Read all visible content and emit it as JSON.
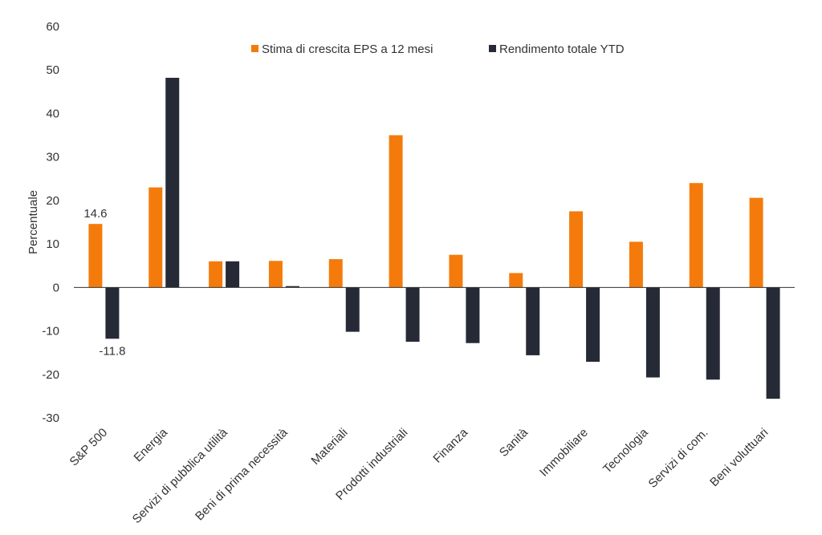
{
  "chart_data": {
    "type": "bar",
    "ylabel": "Percentuale",
    "xlabel": "",
    "ylim": [
      -30,
      60
    ],
    "yticks": [
      60,
      50,
      40,
      30,
      20,
      10,
      0,
      -10,
      -20,
      -30
    ],
    "grid": false,
    "legend_position": "top-center",
    "categories": [
      "S&P 500",
      "Energia",
      "Servizi di pubblica utilità",
      "Beni di prima necessità",
      "Materiali",
      "Prodotti industriali",
      "Finanza",
      "Sanità",
      "Immobiliare",
      "Tecnologia",
      "Servizi di com.",
      "Beni voluttuari"
    ],
    "series": [
      {
        "name": "Stima di crescita EPS a 12 mesi",
        "color": "#F47B0B",
        "values": [
          14.6,
          23,
          6,
          6.1,
          6.5,
          35,
          7.5,
          3.3,
          17.5,
          10.5,
          24,
          20.6
        ]
      },
      {
        "name": "Rendimento totale YTD",
        "color": "#262A36",
        "values": [
          -11.8,
          48.2,
          6,
          0.3,
          -10.2,
          -12.5,
          -12.8,
          -15.6,
          -17.1,
          -20.7,
          -21.2,
          -25.6
        ]
      }
    ],
    "annotations": [
      {
        "series": 0,
        "index": 0,
        "label": "14.6"
      },
      {
        "series": 1,
        "index": 0,
        "label": "-11.8"
      }
    ]
  }
}
